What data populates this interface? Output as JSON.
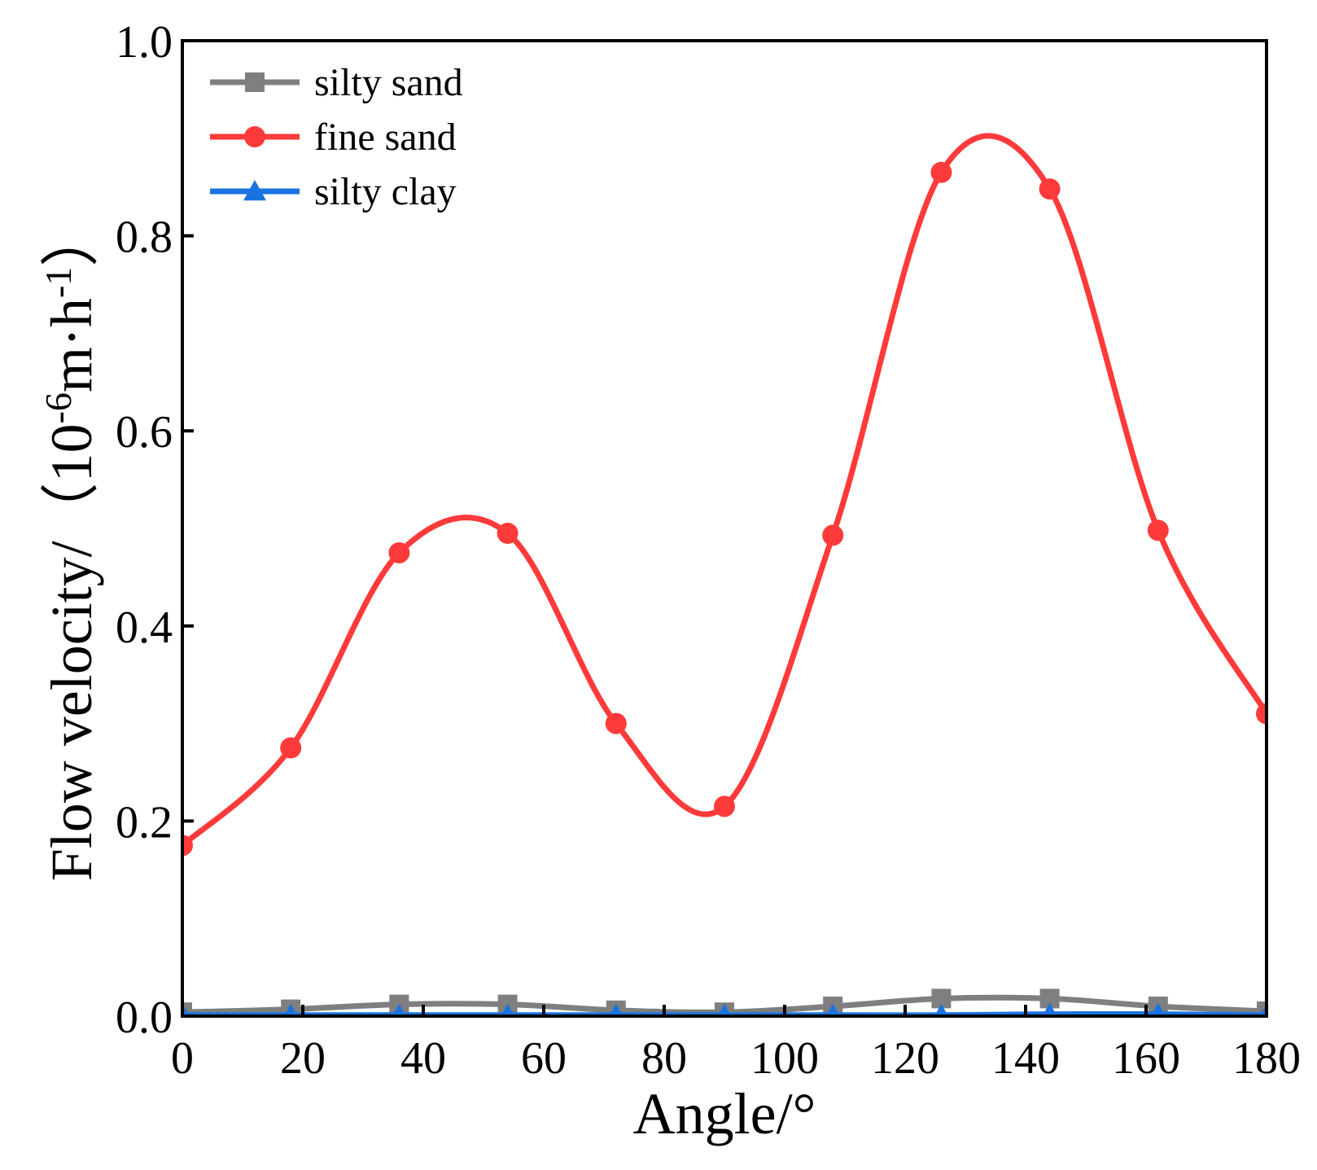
{
  "chart_data": {
    "type": "line",
    "title": "",
    "xlabel": "Angle/°",
    "ylabel": {
      "main": "Flow velocity/（10",
      "exp1": "-6",
      "unit": "m·h",
      "exp2": "-1",
      "close": "）"
    },
    "xlim": [
      0,
      180
    ],
    "ylim": [
      0,
      1.0
    ],
    "xticks": [
      0,
      20,
      40,
      60,
      80,
      100,
      120,
      140,
      160,
      180
    ],
    "xtick_labels": [
      "0",
      "20",
      "40",
      "60",
      "80",
      "100",
      "120",
      "140",
      "160",
      "180"
    ],
    "yticks": [
      0,
      0.2,
      0.4,
      0.6,
      0.8,
      1.0
    ],
    "ytick_labels": [
      "0.0",
      "0.2",
      "0.4",
      "0.6",
      "0.8",
      "1.0"
    ],
    "grid": false,
    "legend_position": "top-left",
    "x": [
      0,
      18,
      36,
      54,
      72,
      90,
      108,
      126,
      144,
      162,
      180
    ],
    "series": [
      {
        "name": "silty sand",
        "color": "#7f7f7f",
        "marker": "square",
        "values": [
          0.004,
          0.007,
          0.012,
          0.012,
          0.006,
          0.004,
          0.01,
          0.018,
          0.018,
          0.01,
          0.005
        ]
      },
      {
        "name": "fine sand",
        "color": "#ff3a3a",
        "marker": "circle",
        "values": [
          0.175,
          0.275,
          0.475,
          0.495,
          0.3,
          0.215,
          0.493,
          0.865,
          0.848,
          0.498,
          0.31
        ]
      },
      {
        "name": "silty clay",
        "color": "#1a73e0",
        "marker": "triangle",
        "values": [
          0.001,
          0.001,
          0.001,
          0.001,
          0.001,
          0.001,
          0.001,
          0.001,
          0.002,
          0.002,
          0.001
        ]
      }
    ]
  }
}
